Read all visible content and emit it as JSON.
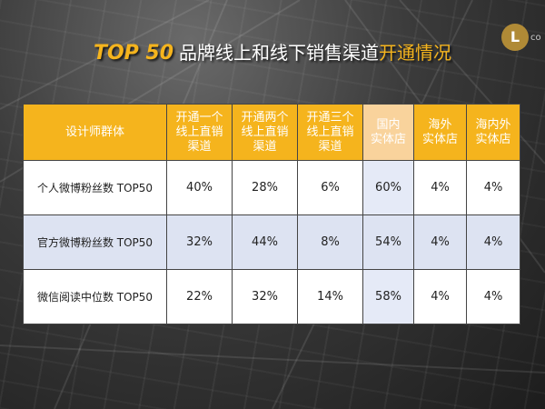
{
  "title": {
    "en": "TOP 50",
    "zh": "品牌线上和线下销售渠道",
    "highlight": "开通情况"
  },
  "logo": {
    "mark": "L",
    "suffix": "co"
  },
  "table": {
    "headers": [
      "设计师群体",
      "开通一个\n线上直销\n渠道",
      "开通两个\n线上直销\n渠道",
      "开通三个\n线上直销\n渠道",
      "国内\n实体店",
      "海外\n实体店",
      "海内外\n实体店"
    ],
    "rows": [
      {
        "label": "个人微博粉丝数 TOP50",
        "values": [
          "40%",
          "28%",
          "6%",
          "60%",
          "4%",
          "4%"
        ]
      },
      {
        "label": "官方微博粉丝数 TOP50",
        "values": [
          "32%",
          "44%",
          "8%",
          "54%",
          "4%",
          "4%"
        ]
      },
      {
        "label": "微信阅读中位数 TOP50",
        "values": [
          "22%",
          "32%",
          "14%",
          "58%",
          "4%",
          "4%"
        ]
      }
    ]
  },
  "colors": {
    "header": "#f5b41d",
    "header_highlight": "#f9d39c",
    "row_alt": "#dde3f2",
    "title_accent": "#f5b41d"
  }
}
